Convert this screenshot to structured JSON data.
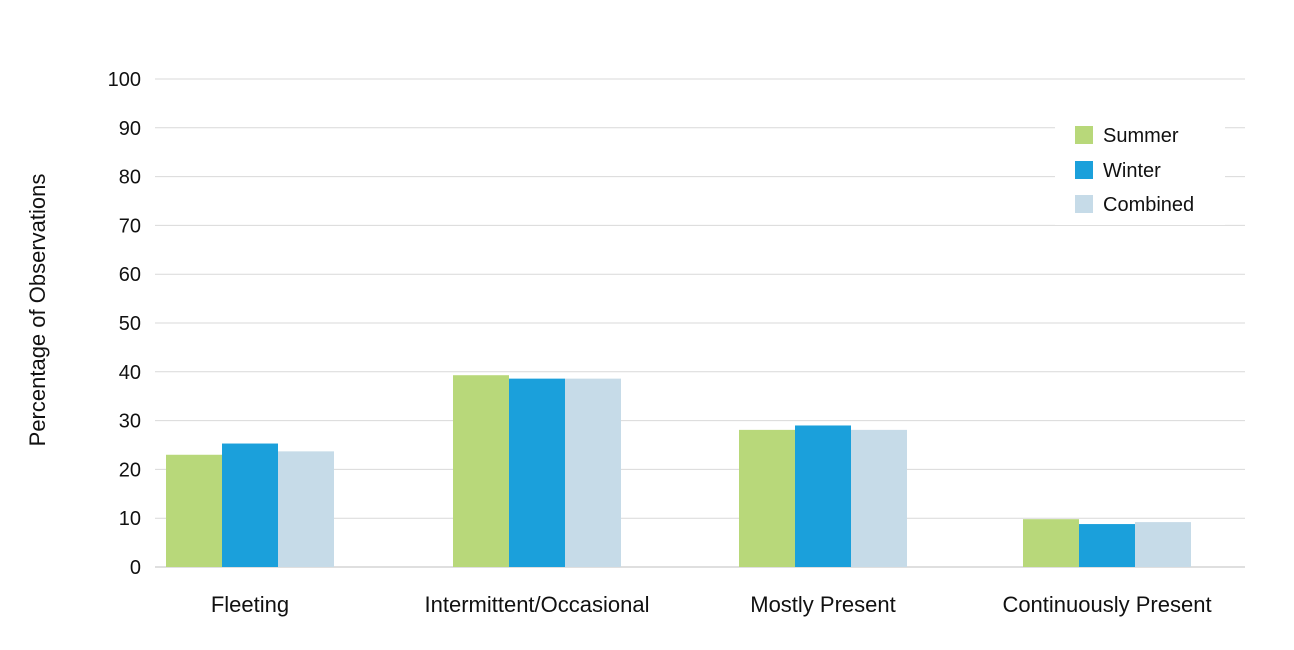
{
  "chart_data": {
    "type": "bar",
    "title": "",
    "xlabel": "",
    "ylabel": "Percentage of Observations",
    "ylim": [
      0,
      100
    ],
    "yticks": [
      0,
      10,
      20,
      30,
      40,
      50,
      60,
      70,
      80,
      90,
      100
    ],
    "grid": true,
    "legend_position": "top-right",
    "categories": [
      "Fleeting",
      "Intermittent/Occasional",
      "Mostly Present",
      "Continuously Present"
    ],
    "series": [
      {
        "name": "Summer",
        "color": "#b8d87a",
        "values": [
          23,
          39.3,
          28.1,
          9.8
        ]
      },
      {
        "name": "Winter",
        "color": "#1ba0db",
        "values": [
          25.3,
          38.6,
          29,
          8.8
        ]
      },
      {
        "name": "Combined",
        "color": "#c6dbe8",
        "values": [
          23.7,
          38.6,
          28.1,
          9.2
        ]
      }
    ]
  }
}
